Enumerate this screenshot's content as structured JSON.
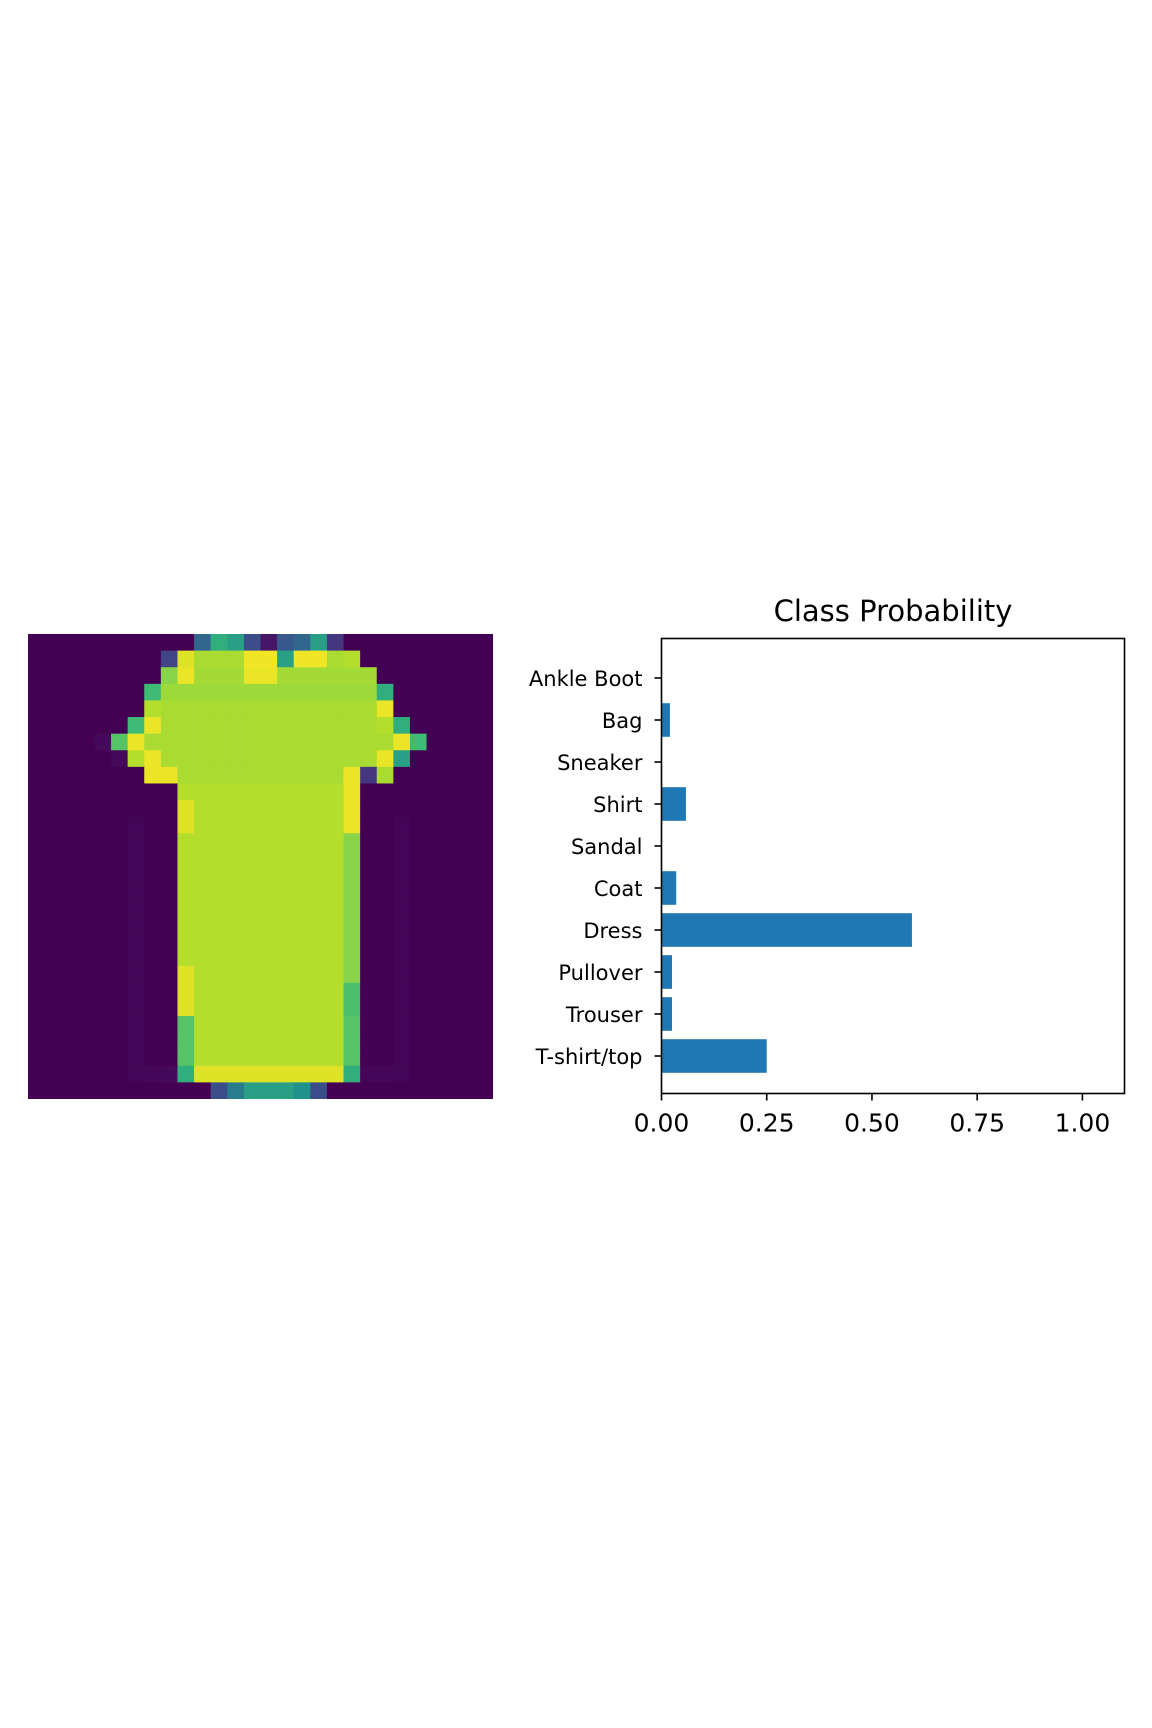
{
  "image_panel": {
    "kind": "grayscale-pixel-grid",
    "grid": 28,
    "colormap": "viridis"
  },
  "chart_data": {
    "type": "bar",
    "orientation": "horizontal",
    "title": "Class Probability",
    "xlabel": "",
    "ylabel": "",
    "categories": [
      "T-shirt/top",
      "Trouser",
      "Pullover",
      "Dress",
      "Coat",
      "Sandal",
      "Shirt",
      "Sneaker",
      "Bag",
      "Ankle Boot"
    ],
    "values": [
      0.25,
      0.025,
      0.025,
      0.595,
      0.035,
      0.0,
      0.058,
      0.0,
      0.02,
      0.0
    ],
    "xlim": [
      0,
      1.1
    ],
    "xticks": [
      0.0,
      0.25,
      0.5,
      0.75,
      1.0
    ],
    "xtick_labels": [
      "0.00",
      "0.25",
      "0.50",
      "0.75",
      "1.00"
    ],
    "grid": false,
    "bar_color": "#1f77b4"
  }
}
